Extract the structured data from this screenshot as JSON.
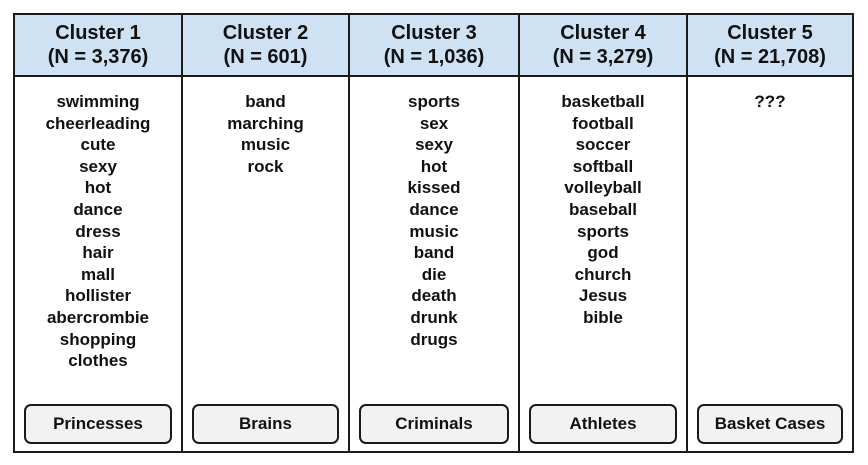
{
  "clusters": [
    {
      "title": "Cluster 1",
      "count": "(N = 3,376)",
      "terms": [
        "swimming",
        "cheerleading",
        "cute",
        "sexy",
        "hot",
        "dance",
        "dress",
        "hair",
        "mall",
        "hollister",
        "abercrombie",
        "shopping",
        "clothes"
      ],
      "label": "Princesses"
    },
    {
      "title": "Cluster 2",
      "count": "(N = 601)",
      "terms": [
        "band",
        "marching",
        "music",
        "rock"
      ],
      "label": "Brains"
    },
    {
      "title": "Cluster 3",
      "count": "(N = 1,036)",
      "terms": [
        "sports",
        "sex",
        "sexy",
        "hot",
        "kissed",
        "dance",
        "music",
        "band",
        "die",
        "death",
        "drunk",
        "drugs"
      ],
      "label": "Criminals"
    },
    {
      "title": "Cluster 4",
      "count": "(N = 3,279)",
      "terms": [
        "basketball",
        "football",
        "soccer",
        "softball",
        "volleyball",
        "baseball",
        "sports",
        "god",
        "church",
        "Jesus",
        "bible"
      ],
      "label": "Athletes"
    },
    {
      "title": "Cluster 5",
      "count": "(N = 21,708)",
      "terms": [
        "???"
      ],
      "label": "Basket Cases"
    }
  ],
  "colors": {
    "header_bg": "#cfe2f3",
    "label_bg": "#f2f2f2",
    "border": "#1a1a1a"
  }
}
